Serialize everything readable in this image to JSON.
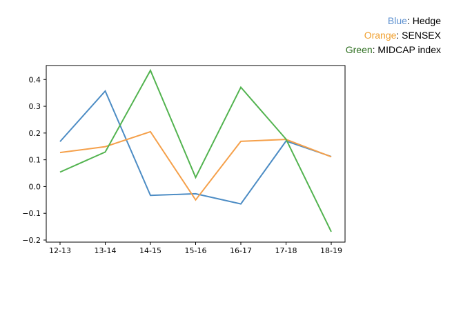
{
  "legend": {
    "items": [
      {
        "color_word": "Blue",
        "label": ": Hedge",
        "color": "#5b8fcf"
      },
      {
        "color_word": "Orange",
        "label": ": SENSEX",
        "color": "#f0a030"
      },
      {
        "color_word": "Green",
        "label": ": MIDCAP index",
        "color": "#2d6e1f"
      }
    ]
  },
  "chart_data": {
    "type": "line",
    "x": [
      "12-13",
      "13-14",
      "14-15",
      "15-16",
      "16-17",
      "17-18",
      "18-19"
    ],
    "series": [
      {
        "name": "Hedge",
        "color": "#4c8cc4",
        "values": [
          0.168,
          0.357,
          -0.033,
          -0.027,
          -0.065,
          0.17,
          0.112
        ]
      },
      {
        "name": "SENSEX",
        "color": "#f5a04a",
        "values": [
          0.127,
          0.149,
          0.205,
          -0.05,
          0.169,
          0.176,
          0.111
        ]
      },
      {
        "name": "MIDCAP index",
        "color": "#52b34f",
        "values": [
          0.054,
          0.129,
          0.434,
          0.034,
          0.371,
          0.177,
          -0.169
        ]
      }
    ],
    "yticks": [
      "0.4",
      "0.3",
      "0.2",
      "0.1",
      "0.0",
      "−0.1",
      "−0.2"
    ],
    "ytick_values": [
      0.4,
      0.3,
      0.2,
      0.1,
      0.0,
      -0.1,
      -0.2
    ],
    "ylim": [
      -0.2,
      0.46
    ],
    "grid": false
  }
}
